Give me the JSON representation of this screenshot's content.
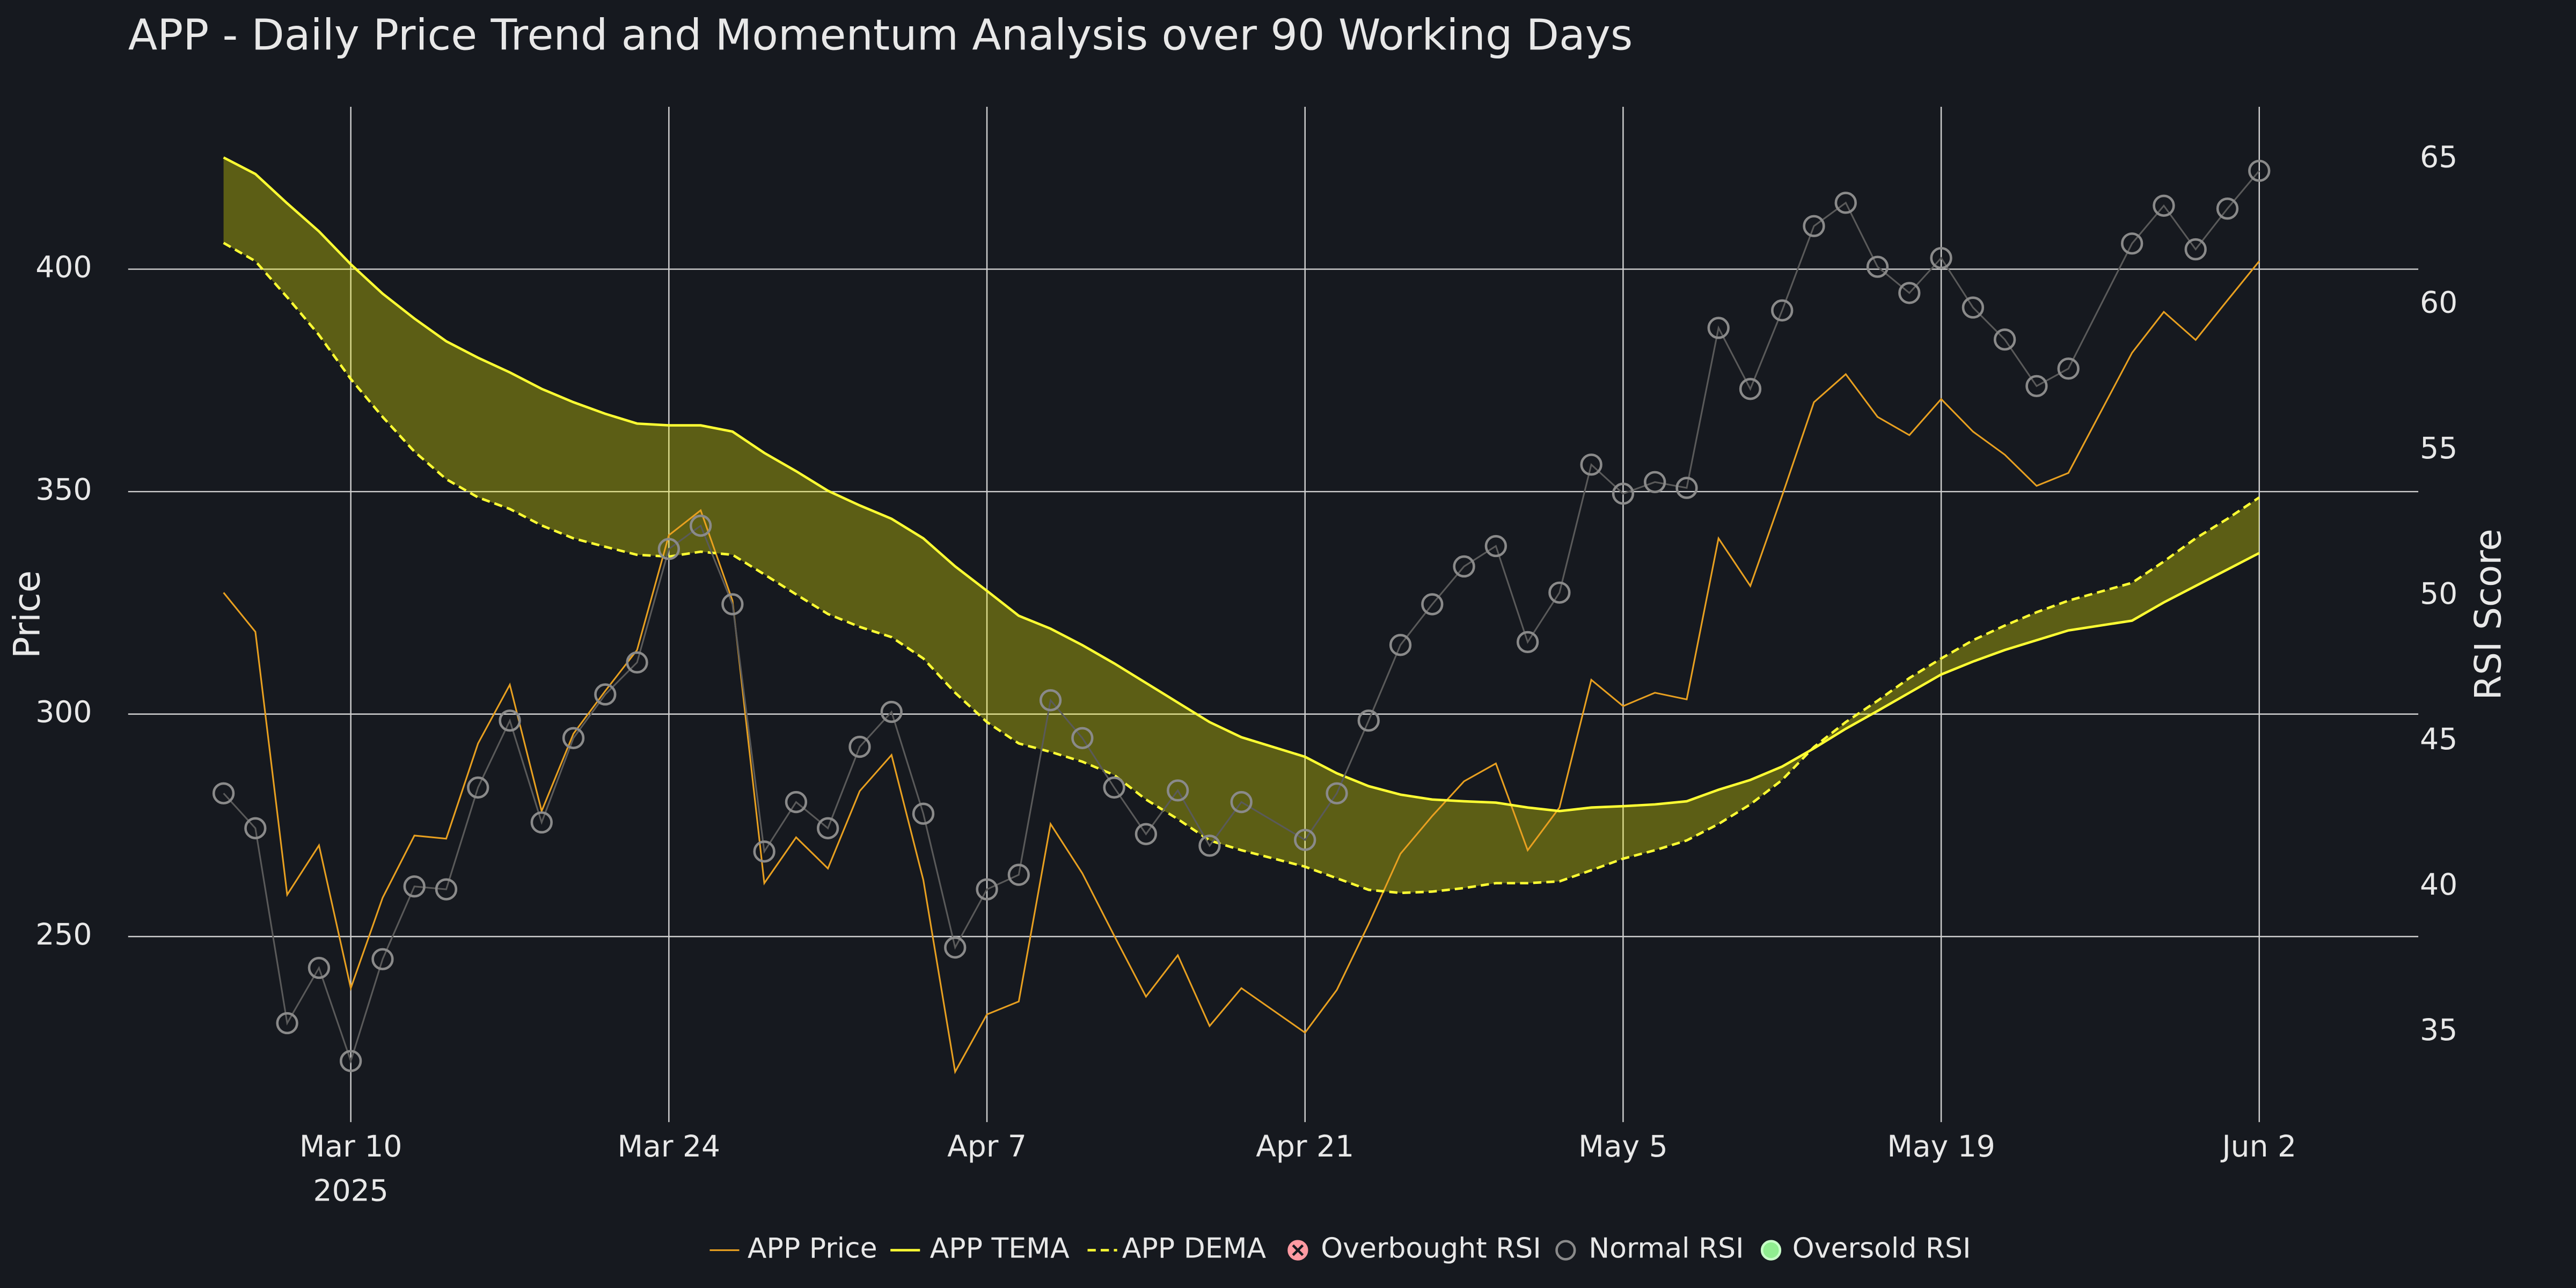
{
  "chart_data": {
    "type": "line",
    "title": "APP - Daily Price Trend and Momentum Analysis over 90 Working Days",
    "y_label": "Price",
    "y2_label": "RSI Score",
    "x": [
      "2025-03-04",
      "2025-03-05",
      "2025-03-06",
      "2025-03-07",
      "2025-03-10",
      "2025-03-11",
      "2025-03-12",
      "2025-03-13",
      "2025-03-14",
      "2025-03-17",
      "2025-03-18",
      "2025-03-19",
      "2025-03-20",
      "2025-03-21",
      "2025-03-24",
      "2025-03-25",
      "2025-03-26",
      "2025-03-27",
      "2025-03-28",
      "2025-03-31",
      "2025-04-01",
      "2025-04-02",
      "2025-04-03",
      "2025-04-04",
      "2025-04-07",
      "2025-04-08",
      "2025-04-09",
      "2025-04-10",
      "2025-04-11",
      "2025-04-14",
      "2025-04-15",
      "2025-04-16",
      "2025-04-17",
      "2025-04-21",
      "2025-04-22",
      "2025-04-23",
      "2025-04-24",
      "2025-04-25",
      "2025-04-28",
      "2025-04-29",
      "2025-04-30",
      "2025-05-01",
      "2025-05-02",
      "2025-05-05",
      "2025-05-06",
      "2025-05-07",
      "2025-05-08",
      "2025-05-09",
      "2025-05-12",
      "2025-05-13",
      "2025-05-14",
      "2025-05-15",
      "2025-05-16",
      "2025-05-19",
      "2025-05-20",
      "2025-05-21",
      "2025-05-22",
      "2025-05-23",
      "2025-05-27",
      "2025-05-28",
      "2025-05-29",
      "2025-05-30",
      "2025-06-02"
    ],
    "xlim": [
      "2025-02-27",
      "2025-06-09"
    ],
    "weekend_breaks": true,
    "xticks": [
      {
        "value": "2025-03-10",
        "label": "Mar 10"
      },
      {
        "value": "2025-03-24",
        "label": "Mar 24"
      },
      {
        "value": "2025-04-07",
        "label": "Apr 7"
      },
      {
        "value": "2025-04-21",
        "label": "Apr 21"
      },
      {
        "value": "2025-05-05",
        "label": "May 5"
      },
      {
        "value": "2025-05-19",
        "label": "May 19"
      },
      {
        "value": "2025-06-02",
        "label": "Jun 2"
      }
    ],
    "xtick_year": "2025",
    "ylim": [
      208.3,
      436.5
    ],
    "yticks": [
      250,
      300,
      350,
      400
    ],
    "y2lim": [
      31.9,
      66.8
    ],
    "y2ticks": [
      35,
      40,
      45,
      50,
      55,
      60,
      65
    ],
    "grid": true,
    "legend": "bottom",
    "band_fill": "rgba(255,255,0,0.3)",
    "series": [
      {
        "name": "APP Price",
        "color": "#e8a020",
        "mode": "lines",
        "width": 1,
        "values": [
          327.3,
          318.5,
          259.4,
          270.5,
          238.4,
          258.7,
          272.7,
          272.0,
          293.4,
          306.6,
          278.2,
          295.6,
          305.2,
          314.4,
          340.2,
          345.8,
          325.5,
          262.0,
          272.3,
          265.3,
          282.7,
          290.8,
          262.7,
          219.6,
          232.5,
          235.4,
          275.3,
          264.2,
          250.2,
          236.5,
          245.8,
          229.9,
          238.4,
          228.4,
          238.0,
          252.8,
          268.6,
          277.1,
          284.9,
          288.9,
          269.4,
          279.0,
          307.7,
          301.8,
          304.8,
          303.3,
          339.5,
          328.8,
          349.1,
          370.1,
          376.4,
          366.8,
          362.7,
          370.8,
          363.5,
          358.3,
          351.3,
          354.2,
          381.2,
          390.4,
          384.1,
          393.0,
          401.8
        ]
      },
      {
        "name": "APP TEMA",
        "color": "#ffff33",
        "mode": "lines",
        "width": 1.5,
        "values": [
          425.1,
          421.4,
          414.8,
          408.5,
          401.1,
          394.5,
          388.9,
          383.8,
          380.1,
          376.8,
          373.1,
          370.1,
          367.5,
          365.3,
          364.9,
          364.9,
          363.5,
          358.7,
          354.6,
          350.2,
          346.9,
          343.9,
          339.5,
          333.2,
          327.7,
          322.1,
          319.2,
          315.5,
          311.4,
          307.0,
          302.6,
          298.2,
          294.8,
          290.4,
          286.7,
          283.8,
          281.9,
          280.8,
          280.4,
          280.1,
          279.0,
          278.2,
          279.0,
          279.3,
          279.7,
          280.4,
          283.0,
          285.2,
          288.2,
          292.3,
          296.7,
          300.7,
          304.8,
          308.9,
          311.8,
          314.4,
          316.6,
          318.8,
          321.0,
          325.1,
          328.8,
          332.5,
          336.2
        ]
      },
      {
        "name": "APP DEMA",
        "color": "#ffff33",
        "mode": "lines",
        "dash": true,
        "width": 1.5,
        "values": [
          405.9,
          401.8,
          393.7,
          385.2,
          375.3,
          366.8,
          359.0,
          352.8,
          348.7,
          346.1,
          342.4,
          339.5,
          337.6,
          335.8,
          335.4,
          336.5,
          335.8,
          331.4,
          326.9,
          322.5,
          319.6,
          317.3,
          312.5,
          304.8,
          298.2,
          293.4,
          291.5,
          289.3,
          286.3,
          280.8,
          276.4,
          271.6,
          269.4,
          265.7,
          263.1,
          260.5,
          259.8,
          260.1,
          260.9,
          262.0,
          262.0,
          262.4,
          264.9,
          267.5,
          269.4,
          271.6,
          275.3,
          279.7,
          285.2,
          292.6,
          298.2,
          303.0,
          308.1,
          312.5,
          316.6,
          319.9,
          322.9,
          325.5,
          329.5,
          334.3,
          339.5,
          343.9,
          348.7
        ]
      },
      {
        "name": "Overbought RSI",
        "color": "#ff9aa2",
        "mode": "markers",
        "symbol": "circle-x",
        "axis": "y2",
        "values": [
          null,
          null,
          null,
          null,
          null,
          null,
          null,
          null,
          null,
          null,
          null,
          null,
          null,
          null,
          null,
          null,
          null,
          null,
          null,
          null,
          null,
          null,
          null,
          null,
          null,
          null,
          null,
          null,
          null,
          null,
          null,
          null,
          null,
          null,
          null,
          null,
          null,
          null,
          null,
          null,
          null,
          null,
          null,
          null,
          null,
          null,
          null,
          null,
          null,
          null,
          null,
          null,
          null,
          null,
          null,
          null,
          null,
          null,
          null,
          null,
          null,
          null,
          null
        ]
      },
      {
        "name": "Normal RSI",
        "color": "#8a8a8a",
        "mode": "lines+markers",
        "symbol": "circle-open",
        "axis": "y2",
        "values": [
          43.2,
          42.0,
          35.3,
          37.2,
          34.0,
          37.5,
          40.0,
          39.9,
          43.4,
          45.7,
          42.2,
          45.1,
          46.6,
          47.7,
          51.6,
          52.4,
          49.7,
          41.2,
          42.9,
          42.0,
          44.8,
          46.0,
          42.5,
          37.9,
          39.9,
          40.4,
          46.4,
          45.1,
          43.4,
          41.8,
          43.3,
          41.4,
          42.9,
          41.6,
          43.2,
          45.7,
          48.3,
          49.7,
          51.0,
          51.7,
          48.4,
          50.1,
          54.5,
          53.5,
          53.9,
          53.7,
          59.2,
          57.1,
          59.8,
          62.7,
          63.5,
          61.3,
          60.4,
          61.6,
          59.9,
          58.8,
          57.2,
          57.8,
          62.1,
          63.4,
          61.9,
          63.3,
          64.6
        ]
      },
      {
        "name": "Oversold RSI",
        "color": "#90ee90",
        "mode": "markers",
        "symbol": "circle",
        "axis": "y2",
        "values": [
          null,
          null,
          null,
          null,
          null,
          null,
          null,
          null,
          null,
          null,
          null,
          null,
          null,
          null,
          null,
          null,
          null,
          null,
          null,
          null,
          null,
          null,
          null,
          null,
          null,
          null,
          null,
          null,
          null,
          null,
          null,
          null,
          null,
          null,
          null,
          null,
          null,
          null,
          null,
          null,
          null,
          null,
          null,
          null,
          null,
          null,
          null,
          null,
          null,
          null,
          null,
          null,
          null,
          null,
          null,
          null,
          null,
          null,
          null,
          null,
          null,
          null,
          null
        ]
      }
    ]
  }
}
